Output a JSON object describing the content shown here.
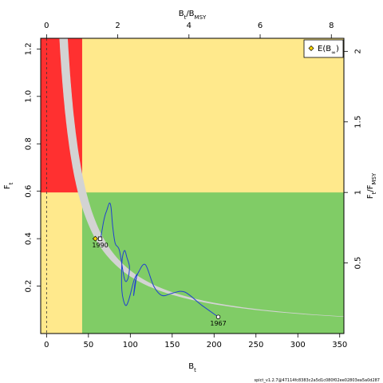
{
  "chart_data": {
    "type": "line",
    "title": "",
    "xlabel": "B",
    "xlabel_sub": "t",
    "ylabel": "F",
    "ylabel_sub": "t",
    "top_label": "B",
    "top_label_sub1": "t",
    "top_label_sep": "/B",
    "top_label_sub2": "MSY",
    "right_label": "F",
    "right_label_sub1": "t",
    "right_label_sep": "/F",
    "right_label_sub2": "MSY",
    "xlim": [
      -7,
      355
    ],
    "ylim": [
      0,
      1.245
    ],
    "bmsy": 42.5,
    "fmsy": 0.595,
    "x_ticks": [
      0,
      50,
      100,
      150,
      200,
      250,
      300,
      350
    ],
    "y_ticks": [
      0.2,
      0.4,
      0.6,
      0.8,
      1.0,
      1.2
    ],
    "top_ticks": [
      0,
      2,
      4,
      6,
      8
    ],
    "right_ticks": [
      0.5,
      1,
      1.5,
      2
    ],
    "tick_labels": {
      "bottom": [
        "0",
        "50",
        "100",
        "150",
        "200",
        "250",
        "300",
        "350"
      ],
      "left": [
        "0.2",
        "0.4",
        "0.6",
        "0.8",
        "1.0",
        "1.2"
      ],
      "top": [
        "0",
        "2",
        "4",
        "6",
        "8"
      ],
      "right": [
        "0.5",
        "1",
        "1.5",
        "2"
      ]
    },
    "zones": {
      "red": "#ff3030",
      "yellow": "#ffe98c",
      "green": "#80cc66"
    },
    "line_color": "#2040d0",
    "band_color": "#d3d3d3",
    "trajectory": {
      "x": [
        205,
        185,
        165,
        150,
        138,
        128,
        118,
        110,
        106,
        104,
        107,
        108,
        104,
        98,
        94,
        90,
        90,
        93,
        96,
        99,
        97,
        93,
        87,
        82,
        79,
        77,
        75,
        72,
        70,
        68,
        66,
        65,
        64
      ],
      "y": [
        0.07,
        0.12,
        0.175,
        0.17,
        0.16,
        0.2,
        0.29,
        0.26,
        0.22,
        0.16,
        0.23,
        0.25,
        0.22,
        0.14,
        0.12,
        0.18,
        0.3,
        0.35,
        0.32,
        0.28,
        0.23,
        0.23,
        0.35,
        0.38,
        0.45,
        0.53,
        0.55,
        0.52,
        0.5,
        0.47,
        0.43,
        0.41,
        0.4
      ]
    },
    "start_label": "1967",
    "end_label": "1990",
    "legend": {
      "symbol": "diamond",
      "label": "E(B",
      "label_sub": "∞",
      "label_end": ")",
      "position": "top-right"
    },
    "eq_point": {
      "x": 62,
      "y": 0.4
    },
    "vline_x": 0
  },
  "footer": "spict_v1.2.7@47114fc8383c2a5d1c080f02ee02803ea5a0d287"
}
